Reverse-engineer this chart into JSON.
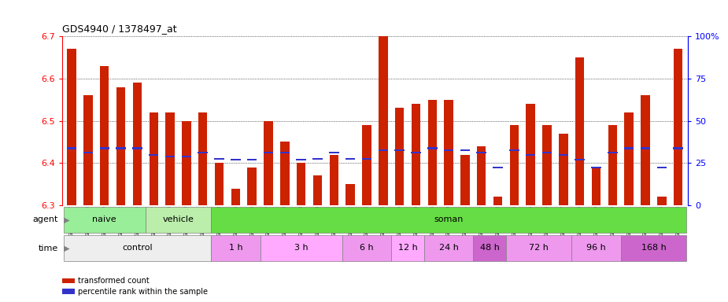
{
  "title": "GDS4940 / 1378497_at",
  "samples": [
    "GSM338857",
    "GSM338858",
    "GSM338859",
    "GSM338862",
    "GSM338864",
    "GSM338877",
    "GSM338880",
    "GSM338860",
    "GSM338861",
    "GSM338863",
    "GSM338865",
    "GSM338866",
    "GSM338867",
    "GSM338868",
    "GSM338869",
    "GSM338870",
    "GSM338871",
    "GSM338872",
    "GSM338873",
    "GSM338874",
    "GSM338875",
    "GSM338876",
    "GSM338878",
    "GSM338879",
    "GSM338881",
    "GSM338882",
    "GSM338883",
    "GSM338884",
    "GSM338885",
    "GSM338886",
    "GSM338887",
    "GSM338888",
    "GSM338889",
    "GSM338890",
    "GSM338891",
    "GSM338892",
    "GSM338893",
    "GSM338894"
  ],
  "bar_values": [
    6.67,
    6.56,
    6.63,
    6.58,
    6.59,
    6.52,
    6.52,
    6.5,
    6.52,
    6.4,
    6.34,
    6.39,
    6.5,
    6.45,
    6.4,
    6.37,
    6.42,
    6.35,
    6.49,
    6.7,
    6.53,
    6.54,
    6.55,
    6.55,
    6.42,
    6.44,
    6.32,
    6.49,
    6.54,
    6.49,
    6.47,
    6.65,
    6.39,
    6.49,
    6.52,
    6.56,
    6.32,
    6.67
  ],
  "percentile_values": [
    6.435,
    6.425,
    6.435,
    6.435,
    6.435,
    6.42,
    6.415,
    6.415,
    6.425,
    6.41,
    6.408,
    6.408,
    6.425,
    6.425,
    6.408,
    6.41,
    6.425,
    6.41,
    6.41,
    6.43,
    6.43,
    6.425,
    6.435,
    6.43,
    6.43,
    6.425,
    6.39,
    6.43,
    6.42,
    6.425,
    6.42,
    6.408,
    6.39,
    6.425,
    6.435,
    6.435,
    6.39,
    6.435
  ],
  "ylim": [
    6.3,
    6.7
  ],
  "yticks": [
    6.3,
    6.4,
    6.5,
    6.6,
    6.7
  ],
  "right_ylim": [
    0,
    100
  ],
  "right_yticks": [
    0,
    25,
    50,
    75,
    100
  ],
  "bar_color": "#cc2200",
  "percentile_color": "#3333cc",
  "agent_groups": [
    {
      "label": "naive",
      "start": 0,
      "end": 4,
      "color": "#99ee99"
    },
    {
      "label": "vehicle",
      "start": 5,
      "end": 8,
      "color": "#bbeeaa"
    },
    {
      "label": "soman",
      "start": 9,
      "end": 37,
      "color": "#66dd44"
    }
  ],
  "time_groups": [
    {
      "label": "control",
      "start": 0,
      "end": 8,
      "color": "#eeeeee"
    },
    {
      "label": "1 h",
      "start": 9,
      "end": 11,
      "color": "#ee99ee"
    },
    {
      "label": "3 h",
      "start": 12,
      "end": 16,
      "color": "#ffaaff"
    },
    {
      "label": "6 h",
      "start": 17,
      "end": 19,
      "color": "#ee99ee"
    },
    {
      "label": "12 h",
      "start": 20,
      "end": 21,
      "color": "#ffaaff"
    },
    {
      "label": "24 h",
      "start": 22,
      "end": 24,
      "color": "#ee99ee"
    },
    {
      "label": "48 h",
      "start": 25,
      "end": 26,
      "color": "#cc66cc"
    },
    {
      "label": "72 h",
      "start": 27,
      "end": 30,
      "color": "#ee99ee"
    },
    {
      "label": "96 h",
      "start": 31,
      "end": 33,
      "color": "#ee99ee"
    },
    {
      "label": "168 h",
      "start": 34,
      "end": 37,
      "color": "#cc66cc"
    }
  ],
  "legend_items": [
    {
      "label": "transformed count",
      "color": "#cc2200"
    },
    {
      "label": "percentile rank within the sample",
      "color": "#3333cc"
    }
  ],
  "background_color": "#ffffff"
}
